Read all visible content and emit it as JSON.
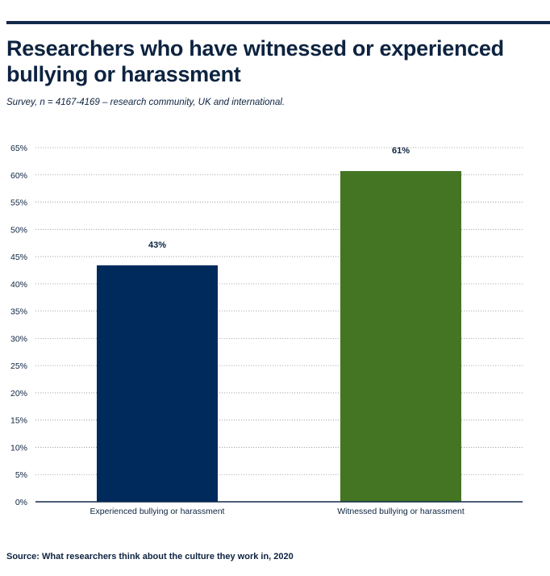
{
  "title": "Researchers who have witnessed or experienced bullying or harassment",
  "subtitle": "Survey, n = 4167-4169 – research community, UK and international.",
  "source": "Source: What researchers think about the culture they work in, 2020",
  "chart_data": {
    "type": "bar",
    "categories": [
      "Experienced bullying or harassment",
      "Witnessed bullying or harassment"
    ],
    "values": [
      43.4,
      60.7
    ],
    "data_labels": [
      "43%",
      "61%"
    ],
    "colors": [
      "#002a5c",
      "#437523"
    ],
    "ylim": [
      0,
      65
    ],
    "yticks": [
      0,
      5,
      10,
      15,
      20,
      25,
      30,
      35,
      40,
      45,
      50,
      55,
      60,
      65
    ],
    "ytick_suffix": "%",
    "grid": "horizontal-dotted",
    "legend": "none"
  }
}
